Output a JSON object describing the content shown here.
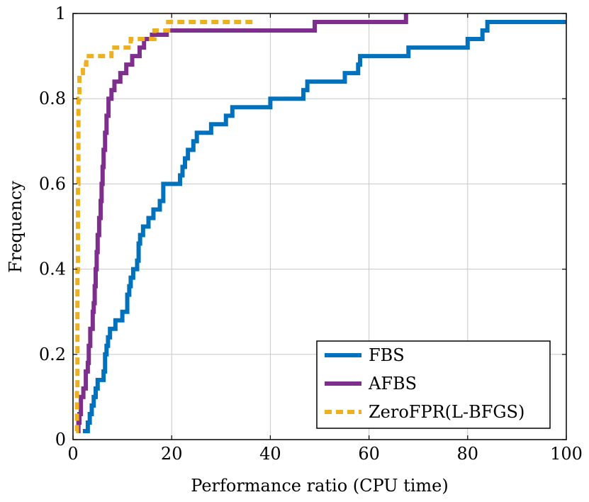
{
  "chart_data": {
    "type": "line",
    "title": "",
    "xlabel": "Performance ratio (CPU time)",
    "ylabel": "Frequency",
    "xlim": [
      0,
      100
    ],
    "ylim": [
      0,
      1
    ],
    "xticks": [
      0,
      20,
      40,
      60,
      80,
      100
    ],
    "xtick_labels": [
      "0",
      "20",
      "40",
      "60",
      "80",
      "100"
    ],
    "yticks": [
      0,
      0.2,
      0.4,
      0.6,
      0.8,
      1
    ],
    "ytick_labels": [
      "0",
      "0.2",
      "0.4",
      "0.6",
      "0.8",
      "1"
    ],
    "grid": true,
    "legend_position": "bottom-right",
    "step": true,
    "series": [
      {
        "name": "FBS",
        "color": "#0072bd",
        "dash": "solid",
        "x": [
          2.0,
          3.0,
          3.4,
          3.8,
          4.2,
          4.6,
          5.0,
          6.2,
          6.5,
          6.8,
          7.1,
          7.5,
          8.6,
          10.0,
          11.0,
          11.4,
          11.7,
          12.2,
          13.0,
          13.3,
          13.6,
          14.2,
          15.3,
          16.3,
          17.6,
          18.3,
          21.7,
          22.2,
          22.7,
          23.3,
          24.4,
          25.1,
          28.0,
          31.0,
          32.3,
          40.0,
          46.7,
          47.5,
          55.1,
          57.8,
          58.2,
          68.0,
          80.0,
          83.0,
          84.0
        ],
        "y": [
          0.02,
          0.04,
          0.06,
          0.08,
          0.1,
          0.12,
          0.14,
          0.16,
          0.2,
          0.22,
          0.24,
          0.26,
          0.28,
          0.3,
          0.34,
          0.36,
          0.38,
          0.4,
          0.42,
          0.46,
          0.48,
          0.5,
          0.52,
          0.54,
          0.56,
          0.6,
          0.62,
          0.64,
          0.66,
          0.68,
          0.7,
          0.72,
          0.74,
          0.76,
          0.78,
          0.8,
          0.82,
          0.84,
          0.86,
          0.88,
          0.9,
          0.92,
          0.94,
          0.96,
          0.98
        ],
        "x_end": 100
      },
      {
        "name": "AFBS",
        "color": "#7e2f8e",
        "dash": "solid",
        "x": [
          0.9,
          1.1,
          1.3,
          1.6,
          2.1,
          2.6,
          3.0,
          3.2,
          3.5,
          4.0,
          4.2,
          4.4,
          4.6,
          4.8,
          5.0,
          5.3,
          5.6,
          5.8,
          6.0,
          6.2,
          6.5,
          6.8,
          7.2,
          7.8,
          8.4,
          9.6,
          10.8,
          12.0,
          13.5,
          14.4,
          16.0,
          19.0,
          49.0,
          67.5
        ],
        "y": [
          0.02,
          0.04,
          0.06,
          0.1,
          0.12,
          0.16,
          0.18,
          0.22,
          0.26,
          0.3,
          0.32,
          0.36,
          0.4,
          0.44,
          0.48,
          0.52,
          0.56,
          0.6,
          0.64,
          0.68,
          0.72,
          0.76,
          0.8,
          0.82,
          0.84,
          0.86,
          0.88,
          0.9,
          0.92,
          0.94,
          0.95,
          0.96,
          0.98,
          1.0
        ],
        "x_end": 67.5
      },
      {
        "name": "ZeroFPR(L-BFGS)",
        "color": "#edb120",
        "dash": "dashed",
        "x": [
          0.6,
          0.8,
          0.9,
          1.0,
          1.1,
          1.3,
          2.0,
          2.7,
          7.8,
          11.7,
          16.5,
          19.3
        ],
        "y": [
          0.02,
          0.12,
          0.4,
          0.6,
          0.8,
          0.86,
          0.88,
          0.9,
          0.92,
          0.94,
          0.96,
          0.98
        ],
        "x_end": 36.5
      }
    ]
  }
}
